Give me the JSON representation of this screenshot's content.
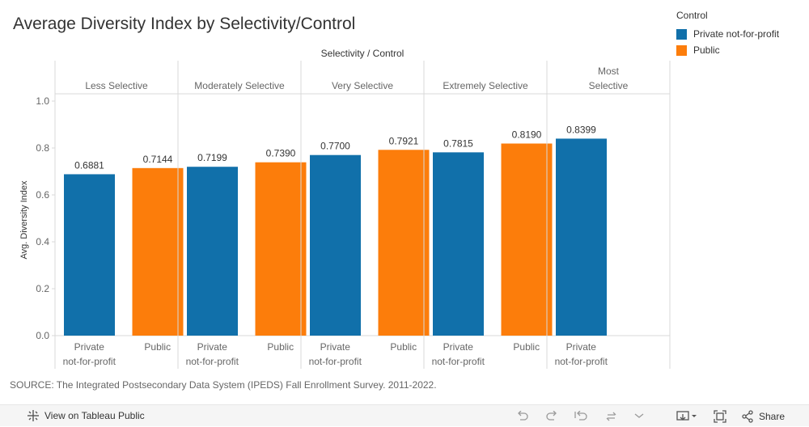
{
  "chart_data": {
    "type": "bar",
    "title": "Average Diversity Index by Selectivity/Control",
    "column_header": "Selectivity  /  Control",
    "ylabel": "Avg. Diversity Index",
    "ylim": [
      0,
      1.0
    ],
    "yticks": [
      "0.0",
      "0.2",
      "0.4",
      "0.6",
      "0.8",
      "1.0"
    ],
    "ytick_values": [
      0,
      0.2,
      0.4,
      0.6,
      0.8,
      1.0
    ],
    "groups": [
      {
        "name": "Less Selective",
        "bars": [
          {
            "category": "Private not-for-profit",
            "line1": "Private",
            "line2": "not-for-profit",
            "value": 0.6881,
            "label": "0.6881"
          },
          {
            "category": "Public",
            "line1": "Public",
            "line2": "",
            "value": 0.7144,
            "label": "0.7144"
          }
        ]
      },
      {
        "name": "Moderately Selective",
        "bars": [
          {
            "category": "Private not-for-profit",
            "line1": "Private",
            "line2": "not-for-profit",
            "value": 0.7199,
            "label": "0.7199"
          },
          {
            "category": "Public",
            "line1": "Public",
            "line2": "",
            "value": 0.739,
            "label": "0.7390"
          }
        ]
      },
      {
        "name": "Very Selective",
        "bars": [
          {
            "category": "Private not-for-profit",
            "line1": "Private",
            "line2": "not-for-profit",
            "value": 0.77,
            "label": "0.7700"
          },
          {
            "category": "Public",
            "line1": "Public",
            "line2": "",
            "value": 0.7921,
            "label": "0.7921"
          }
        ]
      },
      {
        "name": "Extremely Selective",
        "bars": [
          {
            "category": "Private not-for-profit",
            "line1": "Private",
            "line2": "not-for-profit",
            "value": 0.7815,
            "label": "0.7815"
          },
          {
            "category": "Public",
            "line1": "Public",
            "line2": "",
            "value": 0.819,
            "label": "0.8190"
          }
        ]
      },
      {
        "name": "Most Selective",
        "name_lines": [
          "Most",
          "Selective"
        ],
        "bars": [
          {
            "category": "Private not-for-profit",
            "line1": "Private",
            "line2": "not-for-profit",
            "value": 0.8399,
            "label": "0.8399"
          }
        ]
      }
    ],
    "legend": {
      "title": "Control",
      "placement": "top-right",
      "items": [
        {
          "name": "Private not-for-profit",
          "color": "#1170aa"
        },
        {
          "name": "Public",
          "color": "#fc7d0b"
        }
      ]
    },
    "grid": false
  },
  "source_note": "SOURCE: The Integrated Postsecondary Data System (IPEDS) Fall Enrollment Survey. 2011-2022.",
  "footer": {
    "view_on_tableau": "View on Tableau Public",
    "share": "Share"
  },
  "colors": {
    "private": "#1170aa",
    "public": "#fc7d0b"
  }
}
